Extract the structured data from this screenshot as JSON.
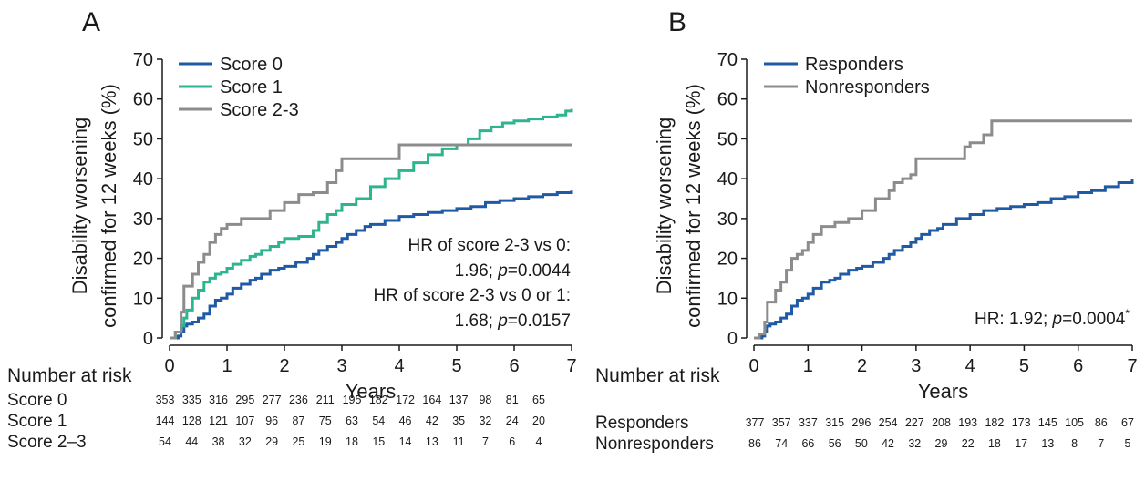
{
  "chart_data": [
    {
      "type": "line",
      "panel_letter": "A",
      "xlabel": "Years",
      "ylabel": [
        "Disability worsening",
        "confirmed for 12 weeks (%)"
      ],
      "xlim": [
        0,
        7
      ],
      "ylim": [
        0,
        70
      ],
      "xticks": [
        0,
        1,
        2,
        3,
        4,
        5,
        6,
        7
      ],
      "yticks": [
        0,
        10,
        20,
        30,
        40,
        50,
        60,
        70
      ],
      "grid": false,
      "legend_position": "top-left",
      "series": [
        {
          "name": "Score 0",
          "color": "#1f5aa6",
          "x": [
            0,
            0.15,
            0.2,
            0.25,
            0.3,
            0.4,
            0.5,
            0.6,
            0.7,
            0.8,
            0.9,
            1.0,
            1.1,
            1.25,
            1.4,
            1.5,
            1.6,
            1.75,
            1.9,
            2.0,
            2.2,
            2.4,
            2.5,
            2.6,
            2.75,
            2.9,
            3.0,
            3.1,
            3.25,
            3.4,
            3.5,
            3.75,
            4.0,
            4.25,
            4.5,
            4.75,
            5.0,
            5.25,
            5.5,
            5.75,
            6.0,
            6.25,
            6.5,
            6.75,
            7.0
          ],
          "y": [
            0,
            0.5,
            1.5,
            3,
            3.5,
            4,
            5,
            6,
            8,
            9.5,
            10,
            11,
            12.5,
            13.5,
            14.5,
            15,
            16,
            17,
            17.5,
            18,
            19,
            20,
            21,
            22,
            23,
            24,
            25,
            26,
            27,
            28,
            28.5,
            29.5,
            30.5,
            31,
            31.5,
            32,
            32.5,
            33,
            34,
            34.5,
            35,
            35.5,
            36,
            36.5,
            37
          ]
        },
        {
          "name": "Score 1",
          "color": "#2db58f",
          "x": [
            0,
            0.1,
            0.2,
            0.25,
            0.3,
            0.4,
            0.5,
            0.6,
            0.7,
            0.8,
            0.9,
            1.0,
            1.1,
            1.25,
            1.4,
            1.5,
            1.6,
            1.75,
            1.9,
            2.0,
            2.25,
            2.5,
            2.6,
            2.75,
            2.9,
            3.0,
            3.25,
            3.5,
            3.75,
            4.0,
            4.25,
            4.5,
            4.75,
            5.0,
            5.2,
            5.4,
            5.6,
            5.8,
            6.0,
            6.25,
            6.5,
            6.75,
            6.9,
            7.0
          ],
          "y": [
            0,
            1.5,
            3,
            5,
            7,
            10,
            12,
            14,
            15,
            16,
            16.5,
            17.5,
            18.5,
            19.5,
            20.5,
            21,
            22,
            23,
            24,
            25,
            25.5,
            27,
            29,
            31,
            32,
            33.5,
            35,
            38,
            40,
            42,
            44,
            46,
            47.5,
            48.5,
            50,
            52,
            53,
            54,
            54.5,
            55,
            55.5,
            56,
            57,
            57.5
          ]
        },
        {
          "name": "Score 2-3",
          "color": "#8c8c8c",
          "x": [
            0,
            0.1,
            0.2,
            0.25,
            0.4,
            0.5,
            0.6,
            0.7,
            0.8,
            0.9,
            1.0,
            1.25,
            1.5,
            1.75,
            2.0,
            2.25,
            2.5,
            2.75,
            2.9,
            3.0,
            3.25,
            3.5,
            3.75,
            4.0,
            4.25,
            4.5,
            5.0,
            5.5,
            6.0,
            7.0
          ],
          "y": [
            0,
            1.5,
            6.5,
            13,
            16,
            19,
            21,
            24,
            26,
            27.5,
            28.5,
            30,
            30,
            32,
            34,
            36,
            36.5,
            39,
            42,
            45,
            45,
            45,
            45,
            48.5,
            48.5,
            48.5,
            48.5,
            48.5,
            48.5,
            48.5
          ]
        }
      ],
      "annotations": [
        {
          "line1": "HR of score 2-3 vs 0:",
          "line2_prefix": "1.96; ",
          "line2_p": "p",
          "line2_value": "=0.0044"
        },
        {
          "line1": "HR of score 2-3 vs 0 or 1:",
          "line2_prefix": "1.68; ",
          "line2_p": "p",
          "line2_value": "=0.0157"
        }
      ],
      "risk_table": {
        "title": "Number at risk",
        "rows": [
          {
            "label": "Score 0",
            "values": [
              353,
              335,
              316,
              295,
              277,
              236,
              211,
              195,
              182,
              172,
              164,
              137,
              98,
              81,
              65
            ]
          },
          {
            "label": "Score 1",
            "values": [
              144,
              128,
              121,
              107,
              96,
              87,
              75,
              63,
              54,
              46,
              42,
              35,
              32,
              24,
              20
            ]
          },
          {
            "label": "Score 2–3",
            "values": [
              54,
              44,
              38,
              32,
              29,
              25,
              19,
              18,
              15,
              14,
              13,
              11,
              7,
              6,
              4
            ]
          }
        ]
      }
    },
    {
      "type": "line",
      "panel_letter": "B",
      "xlabel": "Years",
      "ylabel": [
        "Disability worsening",
        "confirmed for 12 weeks (%)"
      ],
      "xlim": [
        0,
        7
      ],
      "ylim": [
        0,
        70
      ],
      "xticks": [
        0,
        1,
        2,
        3,
        4,
        5,
        6,
        7
      ],
      "yticks": [
        0,
        10,
        20,
        30,
        40,
        50,
        60,
        70
      ],
      "grid": false,
      "legend_position": "top-left",
      "series": [
        {
          "name": "Responders",
          "color": "#1f5aa6",
          "x": [
            0,
            0.15,
            0.2,
            0.25,
            0.3,
            0.4,
            0.5,
            0.6,
            0.7,
            0.8,
            0.9,
            1.0,
            1.1,
            1.25,
            1.4,
            1.5,
            1.6,
            1.75,
            1.9,
            2.0,
            2.2,
            2.4,
            2.5,
            2.6,
            2.75,
            2.9,
            3.0,
            3.1,
            3.25,
            3.4,
            3.5,
            3.75,
            4.0,
            4.25,
            4.5,
            4.75,
            5.0,
            5.25,
            5.5,
            5.75,
            6.0,
            6.25,
            6.5,
            6.75,
            7.0
          ],
          "y": [
            0,
            0.5,
            1.5,
            3,
            3.5,
            4,
            5,
            6,
            8,
            9.5,
            10,
            11,
            12.5,
            14,
            14.5,
            15,
            16,
            17,
            17.5,
            18,
            19,
            20,
            21,
            22,
            23,
            24,
            25,
            26,
            27,
            27.5,
            28.5,
            30,
            31,
            32,
            32.5,
            33,
            33.5,
            34,
            35,
            35.5,
            36.5,
            37,
            38,
            39,
            40
          ]
        },
        {
          "name": "Nonresponders",
          "color": "#8c8c8c",
          "x": [
            0,
            0.1,
            0.2,
            0.25,
            0.4,
            0.5,
            0.6,
            0.7,
            0.8,
            0.9,
            1.0,
            1.1,
            1.25,
            1.5,
            1.75,
            2.0,
            2.25,
            2.5,
            2.6,
            2.75,
            2.9,
            3.0,
            3.25,
            3.5,
            3.75,
            3.9,
            4.0,
            4.25,
            4.4,
            4.5,
            5.0,
            5.5,
            6.0,
            7.0
          ],
          "y": [
            0,
            1,
            4,
            9,
            12,
            14,
            17,
            20,
            21,
            22,
            24,
            26,
            28,
            29,
            30,
            32,
            35,
            37,
            39,
            40,
            41,
            45,
            45,
            45,
            45,
            48,
            49,
            51,
            54.5,
            54.5,
            54.5,
            54.5,
            54.5,
            54.5
          ]
        }
      ],
      "annotations": [
        {
          "line1": "",
          "line2_prefix": "HR: 1.92; ",
          "line2_p": "p",
          "line2_value": "=0.0004",
          "superscript": "*"
        }
      ],
      "risk_table": {
        "title": "Number at risk",
        "rows": [
          {
            "label": "Responders",
            "values": [
              377,
              357,
              337,
              315,
              296,
              254,
              227,
              208,
              193,
              182,
              173,
              145,
              105,
              86,
              67
            ]
          },
          {
            "label": "Nonresponders",
            "values": [
              86,
              74,
              66,
              56,
              50,
              42,
              32,
              29,
              22,
              18,
              17,
              13,
              8,
              7,
              5
            ]
          }
        ]
      }
    }
  ]
}
